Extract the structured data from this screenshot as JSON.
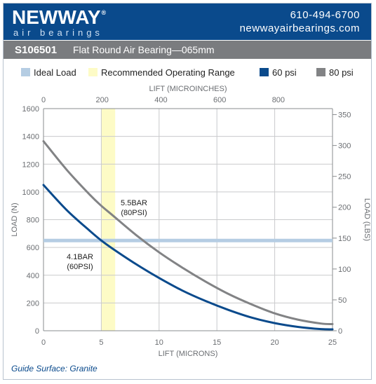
{
  "header": {
    "logo_main": "NEWWAY",
    "logo_reg": "®",
    "logo_sub": "air bearings",
    "phone": "610-494-6700",
    "website": "newwayairbearings.com"
  },
  "title": {
    "code": "S106501",
    "name": "Flat Round Air Bearing—065mm"
  },
  "legend": [
    {
      "label": "Ideal Load",
      "color": "#b5cde3"
    },
    {
      "label": "Recommended Operating Range",
      "color": "#fdfbc6"
    },
    {
      "label": "60 psi",
      "color": "#0a4a8c"
    },
    {
      "label": "80 psi",
      "color": "#828385"
    }
  ],
  "footer": "Guide Surface: Granite",
  "chart_data": {
    "type": "line",
    "x_label": "LIFT (MICRONS)",
    "x_ticks": [
      0,
      5,
      10,
      15,
      20,
      25
    ],
    "x_range": [
      0,
      25
    ],
    "x2_label": "LIFT (MICROINCHES)",
    "x2_ticks": [
      0,
      200,
      400,
      600,
      800
    ],
    "y_label": "LOAD (N)",
    "y_ticks": [
      0,
      200,
      400,
      600,
      800,
      1000,
      1200,
      1400,
      1600
    ],
    "y_range": [
      0,
      1600
    ],
    "y2_label": "LOAD (LBS)",
    "y2_ticks": [
      0,
      50,
      100,
      150,
      200,
      250,
      300,
      350
    ],
    "ideal_load": 650,
    "recommended_range": [
      5,
      6.2
    ],
    "grid": true,
    "series": [
      {
        "name": "60 psi",
        "color": "#0a4a8c",
        "annotation": [
          "4.1BAR",
          "(60PSI)"
        ],
        "points": [
          [
            0,
            1050
          ],
          [
            2,
            870
          ],
          [
            4,
            720
          ],
          [
            5,
            650
          ],
          [
            6,
            590
          ],
          [
            8,
            480
          ],
          [
            10,
            380
          ],
          [
            12,
            290
          ],
          [
            14,
            215
          ],
          [
            16,
            150
          ],
          [
            18,
            95
          ],
          [
            20,
            55
          ],
          [
            22,
            28
          ],
          [
            24,
            12
          ],
          [
            25,
            10
          ]
        ]
      },
      {
        "name": "80 psi",
        "color": "#828385",
        "annotation": [
          "5.5BAR",
          "(80PSI)"
        ],
        "points": [
          [
            0,
            1365
          ],
          [
            2,
            1160
          ],
          [
            4,
            980
          ],
          [
            5,
            900
          ],
          [
            6,
            830
          ],
          [
            8,
            690
          ],
          [
            10,
            565
          ],
          [
            12,
            455
          ],
          [
            14,
            355
          ],
          [
            16,
            265
          ],
          [
            18,
            190
          ],
          [
            20,
            125
          ],
          [
            22,
            80
          ],
          [
            24,
            52
          ],
          [
            25,
            48
          ]
        ]
      }
    ]
  }
}
